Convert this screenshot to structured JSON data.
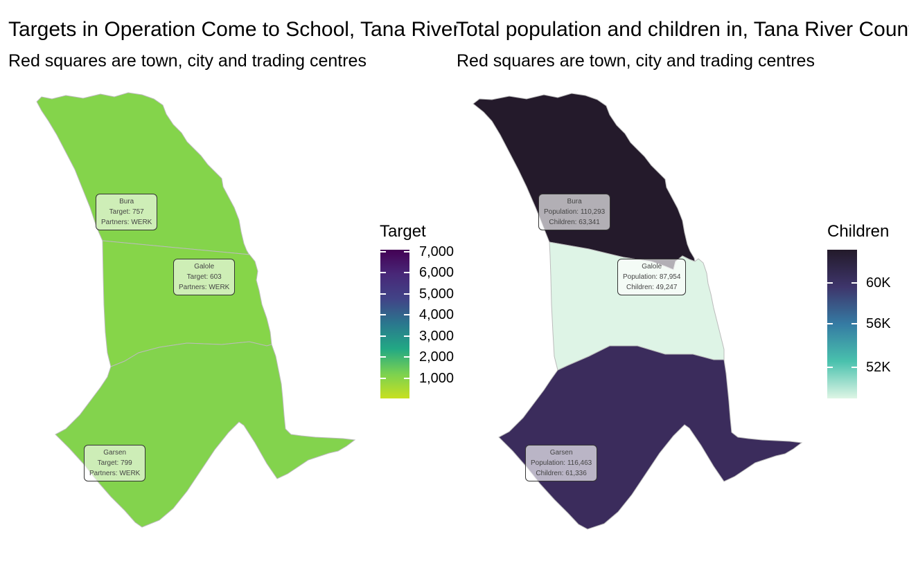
{
  "left_panel": {
    "title": "Targets in Operation Come to School, Tana River County",
    "subtitle": "Red squares are town, city and trading centres",
    "legend": {
      "title": "Target",
      "ticks": [
        "1,000",
        "2,000",
        "3,000",
        "4,000",
        "5,000",
        "6,000",
        "7,000"
      ],
      "colors": [
        "#c8e020",
        "#7ad151",
        "#22a884",
        "#2a788e",
        "#414487",
        "#482878",
        "#440154"
      ]
    },
    "regions": [
      {
        "name": "Bura",
        "fill": "#84d44b",
        "label_line1": "Bura",
        "label_line2": "Target: 757",
        "label_line3": "Partners: WERK"
      },
      {
        "name": "Galole",
        "fill": "#86d549",
        "label_line1": "Galole",
        "label_line2": "Target: 603",
        "label_line3": "Partners: WERK"
      },
      {
        "name": "Garsen",
        "fill": "#83d34d",
        "label_line1": "Garsen",
        "label_line2": "Target: 799",
        "label_line3": "Partners: WERK"
      }
    ]
  },
  "right_panel": {
    "title": "Total population and children in, Tana River County",
    "subtitle": "Red squares are town, city and trading centres",
    "legend": {
      "title": "Children",
      "ticks": [
        "52K",
        "56K",
        "60K"
      ],
      "colors": [
        "#def5e5",
        "#49c1ad",
        "#357ba3",
        "#3e356b",
        "#231a2a"
      ]
    },
    "regions": [
      {
        "name": "Bura",
        "fill": "#241a2b",
        "label_line1": "Bura",
        "label_line2": "Population: 110,293",
        "label_line3": "Children: 63,341"
      },
      {
        "name": "Galole",
        "fill": "#def4e6",
        "label_line1": "Galole",
        "label_line2": "Population: 87,954",
        "label_line3": "Children: 49,247"
      },
      {
        "name": "Garsen",
        "fill": "#3b2c5c",
        "label_line1": "Garsen",
        "label_line2": "Population: 116,463",
        "label_line3": "Children: 61,336"
      }
    ]
  }
}
